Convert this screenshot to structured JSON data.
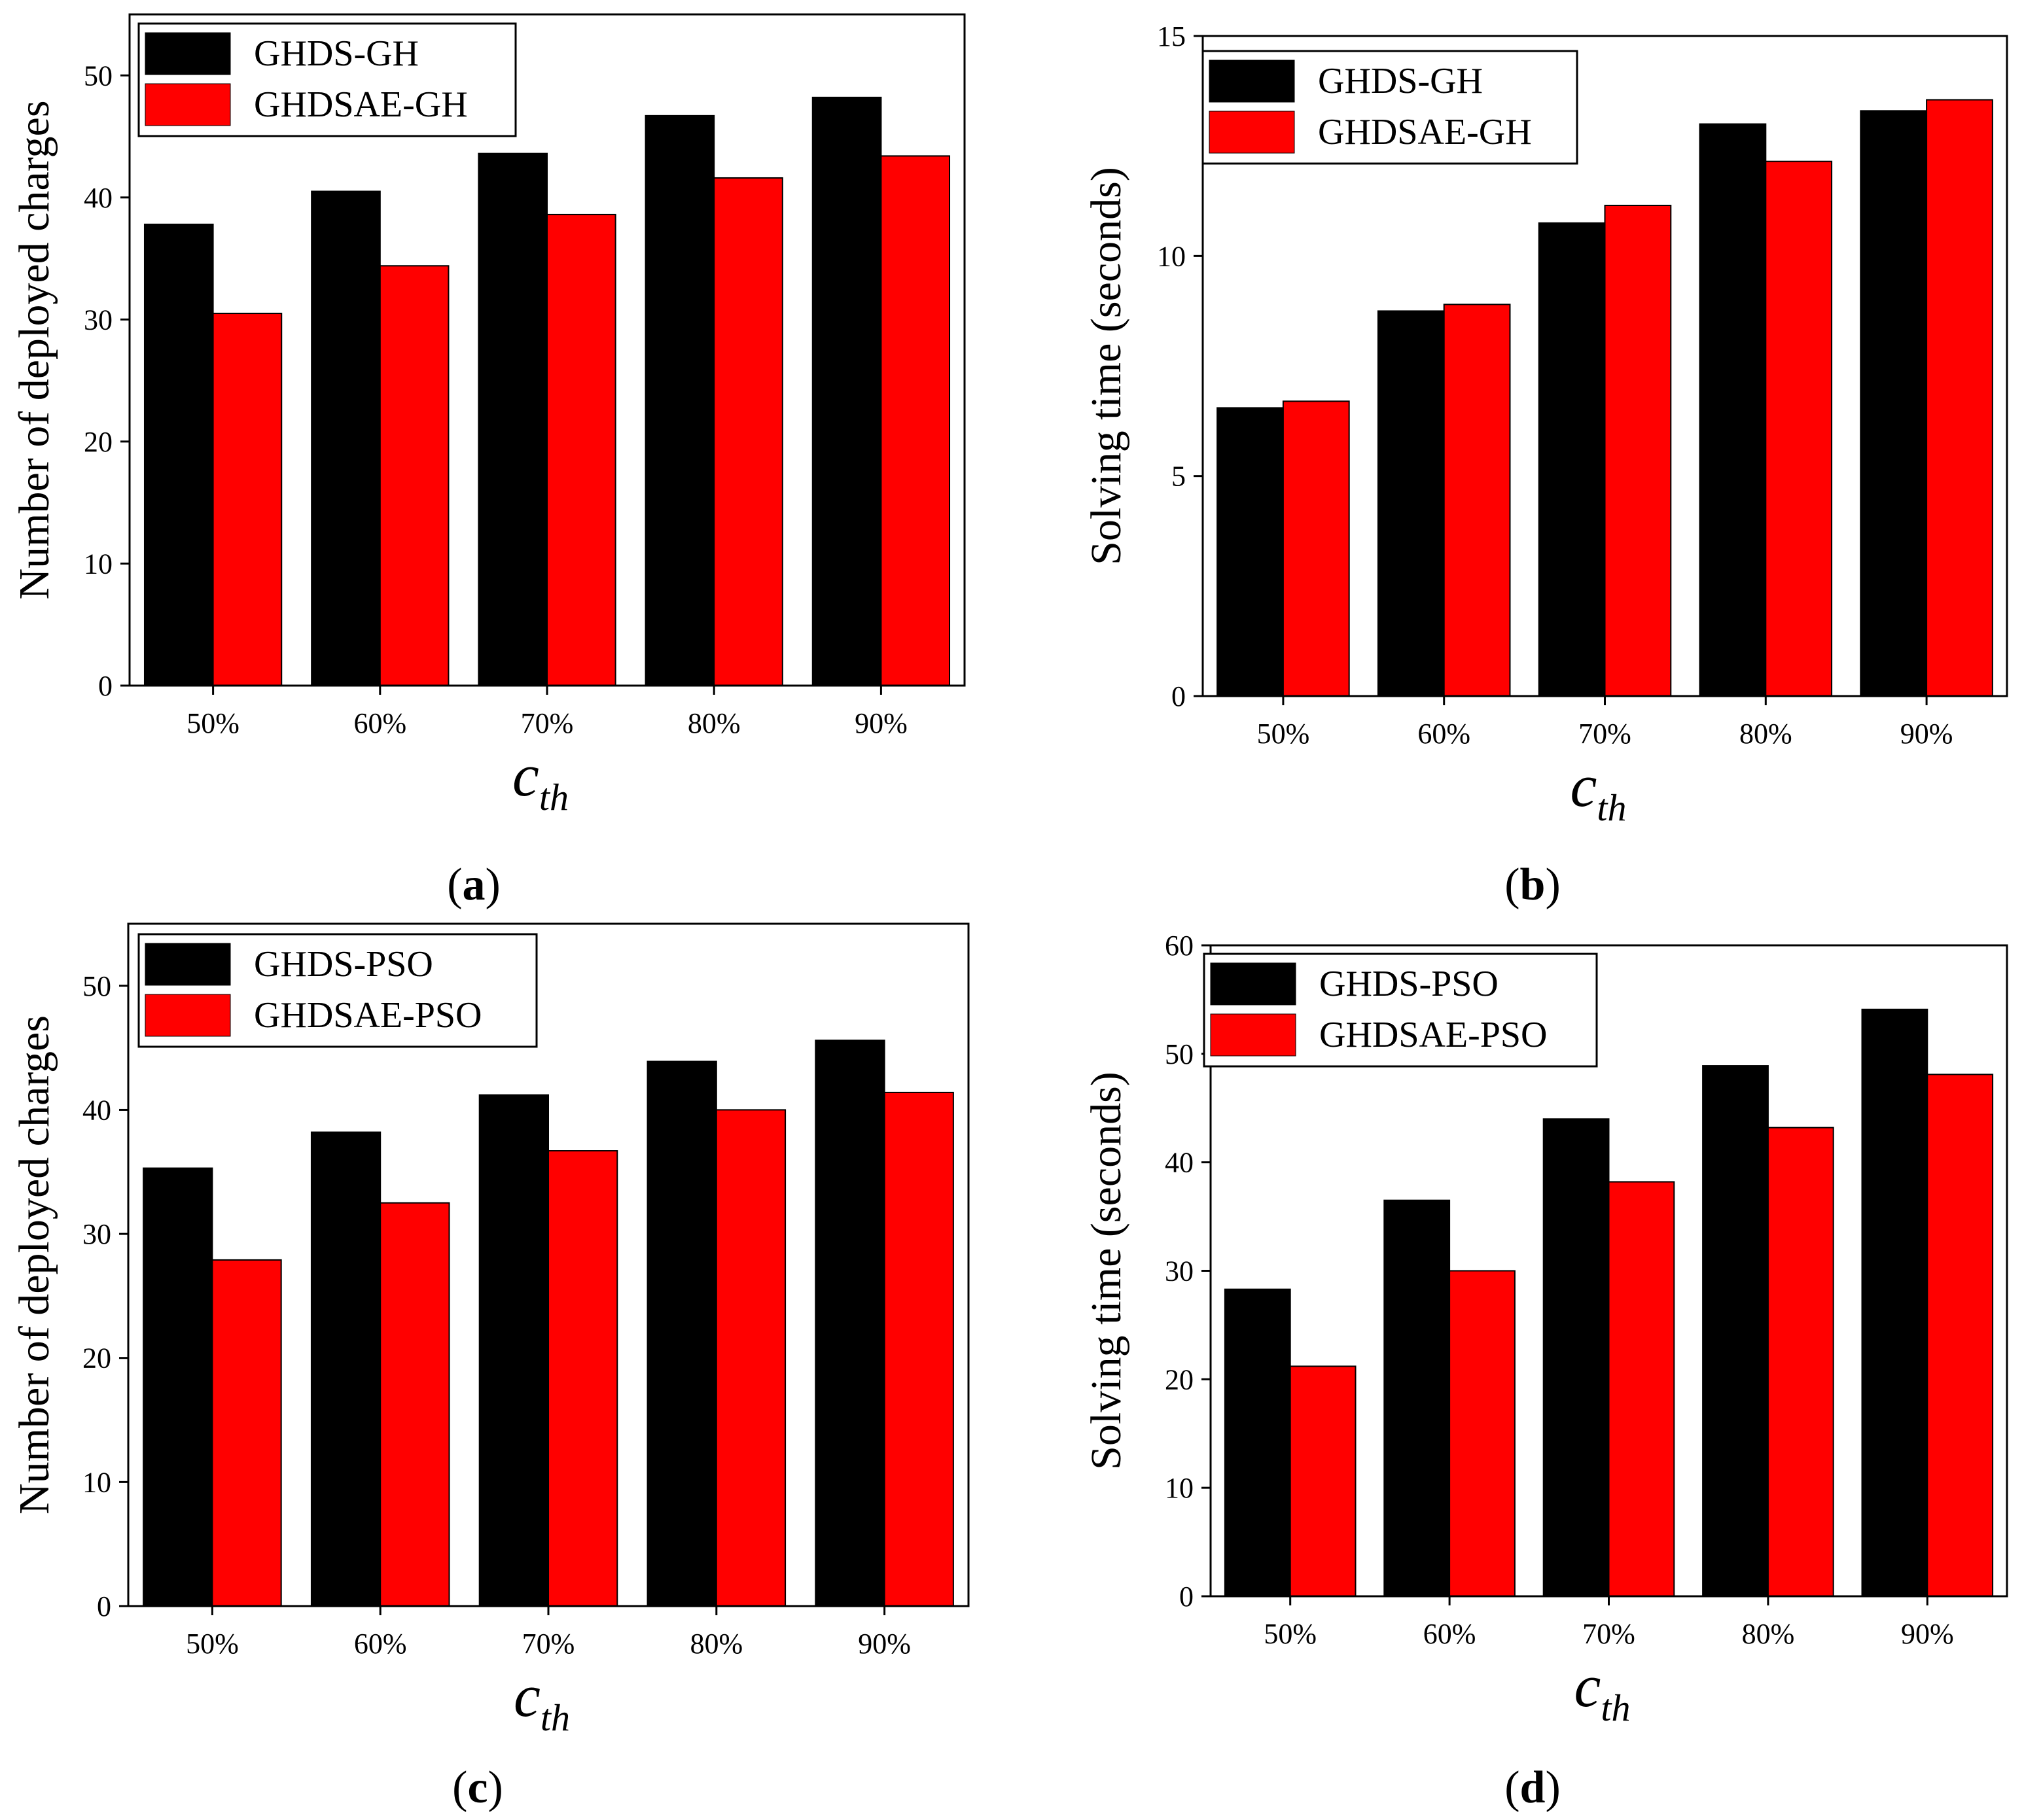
{
  "colors": {
    "series_1": "#000000",
    "series_2": "#ff0000"
  },
  "chart_data": [
    {
      "panel": "(a)",
      "panel_letter": "a",
      "type": "bar",
      "categories": [
        "50%",
        "60%",
        "70%",
        "80%",
        "90%"
      ],
      "series": [
        {
          "name": "GHDS-GH",
          "values": [
            37.8,
            40.5,
            43.6,
            46.7,
            48.2
          ]
        },
        {
          "name": "GHDSAE-GH",
          "values": [
            30.5,
            34.4,
            38.6,
            41.6,
            43.4
          ]
        }
      ],
      "ylabel": "Number of deployed charges",
      "xlabel_main": "c",
      "xlabel_sub": "th",
      "ylim": [
        0,
        55
      ],
      "yticks": [
        0,
        10,
        20,
        30,
        40,
        50
      ],
      "ytick_labels": [
        "0",
        "10",
        "20",
        "30",
        "40",
        "50"
      ],
      "legend": "top-left"
    },
    {
      "panel": "(b)",
      "panel_letter": "b",
      "type": "bar",
      "categories": [
        "50%",
        "60%",
        "70%",
        "80%",
        "90%"
      ],
      "series": [
        {
          "name": "GHDS-GH",
          "values": [
            6.55,
            8.75,
            10.75,
            13.0,
            13.3
          ]
        },
        {
          "name": "GHDSAE-GH",
          "values": [
            6.7,
            8.9,
            11.15,
            12.15,
            13.55
          ]
        }
      ],
      "ylabel": "Solving time (seconds)",
      "xlabel_main": "c",
      "xlabel_sub": "th",
      "ylim": [
        0,
        15
      ],
      "yticks": [
        0,
        5,
        10,
        15
      ],
      "ytick_labels": [
        "0",
        "5",
        "10",
        "15"
      ],
      "legend": "top-left"
    },
    {
      "panel": "(c)",
      "panel_letter": "c",
      "type": "bar",
      "categories": [
        "50%",
        "60%",
        "70%",
        "80%",
        "90%"
      ],
      "series": [
        {
          "name": "GHDS-PSO",
          "values": [
            35.3,
            38.2,
            41.2,
            43.9,
            45.6
          ]
        },
        {
          "name": "GHDSAE-PSO",
          "values": [
            27.9,
            32.5,
            36.7,
            40.0,
            41.4
          ]
        }
      ],
      "ylabel": "Number of deployed charges",
      "xlabel_main": "c",
      "xlabel_sub": "th",
      "ylim": [
        0,
        55
      ],
      "yticks": [
        0,
        10,
        20,
        30,
        40,
        50
      ],
      "ytick_labels": [
        "0",
        "10",
        "20",
        "30",
        "40",
        "50"
      ],
      "legend": "top-left"
    },
    {
      "panel": "(d)",
      "panel_letter": "d",
      "type": "bar",
      "categories": [
        "50%",
        "60%",
        "70%",
        "80%",
        "90%"
      ],
      "series": [
        {
          "name": "GHDS-PSO",
          "values": [
            28.3,
            36.5,
            44.0,
            48.9,
            54.1
          ]
        },
        {
          "name": "GHDSAE-PSO",
          "values": [
            21.2,
            30.0,
            38.2,
            43.2,
            48.1
          ]
        }
      ],
      "ylabel": "Solving time (seconds)",
      "xlabel_main": "c",
      "xlabel_sub": "th",
      "ylim": [
        0,
        60
      ],
      "yticks": [
        0,
        10,
        20,
        30,
        40,
        50,
        60
      ],
      "ytick_labels": [
        "0",
        "10",
        "20",
        "30",
        "40",
        "50",
        "60"
      ],
      "legend": "top-left"
    }
  ]
}
